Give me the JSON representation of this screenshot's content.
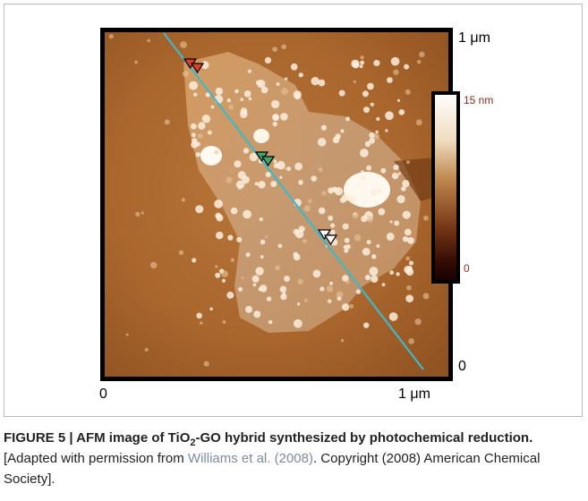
{
  "figure": {
    "axis_labels": {
      "y_top": "1 μm",
      "y_bottom": "0",
      "x_left": "0",
      "x_right": "1 μm"
    },
    "colorbar": {
      "max": "15 nm",
      "min": "0"
    },
    "caption": {
      "label": "FIGURE 5 | AFM image of TiO",
      "subscript": "2",
      "label_rest": "-GO hybrid synthesized by photochemical reduction.",
      "text_before": " [Adapted with permission from ",
      "link": "Williams et al. (2008)",
      "text_after": ". Copyright (2008) American Chemical Society]."
    }
  }
}
